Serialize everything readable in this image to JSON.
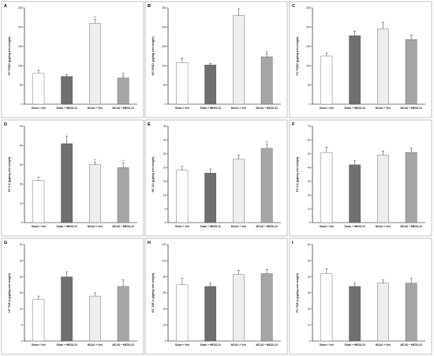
{
  "colors": {
    "Sham + Veh": "#ffffff",
    "Sham + MEDS-23": "#6f6f6f",
    "MCAO + Veh": "#eeeeee",
    "MCAO + MEDS-23": "#a9a9a9"
  },
  "chart_data": [
    {
      "type": "bar",
      "panel": "A",
      "ylabel": "HT PGE2 (pg/mg wet weight)",
      "categories": [
        "Sham + Veh",
        "Sham + MEDS-23",
        "MCAO + Veh",
        "MCAO + MEDS-23"
      ],
      "values": [
        80,
        72,
        210,
        68
      ],
      "errors": [
        8,
        5,
        10,
        6
      ],
      "annotations": [
        "",
        "",
        "**",
        "#"
      ],
      "ylim": [
        0,
        250
      ],
      "yticks": [
        0,
        50,
        100,
        150,
        200,
        250
      ]
    },
    {
      "type": "bar",
      "panel": "B",
      "ylabel": "HC PGE2 (pg/mg wet weight)",
      "categories": [
        "Sham + Veh",
        "Sham + MEDS-23",
        "MCAO + Veh",
        "MCAO + MEDS-23"
      ],
      "values": [
        108,
        102,
        230,
        123
      ],
      "errors": [
        12,
        4,
        18,
        7
      ],
      "annotations": [
        "",
        "",
        "",
        "#"
      ],
      "ylim": [
        0,
        250
      ],
      "yticks": [
        0,
        50,
        100,
        150,
        200,
        250
      ]
    },
    {
      "type": "bar",
      "panel": "C",
      "ylabel": "FC PGE2 (pg/mg wet weight)",
      "categories": [
        "Sham + Veh",
        "Sham + MEDS-23",
        "MCAO + Veh",
        "MCAO + MEDS-23"
      ],
      "values": [
        125,
        178,
        195,
        168
      ],
      "errors": [
        8,
        12,
        18,
        12
      ],
      "annotations": [
        "",
        "",
        "",
        ""
      ],
      "ylim": [
        0,
        250
      ],
      "yticks": [
        0,
        50,
        100,
        150,
        200,
        250
      ]
    },
    {
      "type": "bar",
      "panel": "D",
      "ylabel": "HT IL6 (pg/mg wet weight)",
      "categories": [
        "Sham + Veh",
        "Sham + MEDS-23",
        "MCAO + Veh",
        "MCAO + MEDS-23"
      ],
      "values": [
        22,
        41,
        30,
        28.5
      ],
      "errors": [
        1.5,
        4,
        1.5,
        2.5
      ],
      "annotations": [
        "",
        "",
        "**",
        "**"
      ],
      "ylim": [
        0,
        50
      ],
      "yticks": [
        0,
        10,
        20,
        30,
        40,
        50
      ]
    },
    {
      "type": "bar",
      "panel": "E",
      "ylabel": "HC IL6 (pg/mg wet weight)",
      "categories": [
        "Sham + Veh",
        "Sham + MEDS-23",
        "MCAO + Veh",
        "MCAO + MEDS-23"
      ],
      "values": [
        19,
        18,
        23,
        27
      ],
      "errors": [
        1.5,
        1.5,
        1.5,
        1.5
      ],
      "annotations": [
        "",
        "",
        "",
        "**"
      ],
      "ylim": [
        0,
        35
      ],
      "yticks": [
        0,
        5,
        10,
        15,
        20,
        25,
        30,
        35
      ]
    },
    {
      "type": "bar",
      "panel": "F",
      "ylabel": "FC IL6 (pg/mg wet weight)",
      "categories": [
        "Sham + Veh",
        "Sham + MEDS-23",
        "MCAO + Veh",
        "MCAO + MEDS-23"
      ],
      "values": [
        51,
        42,
        49,
        51
      ],
      "errors": [
        4,
        3,
        3,
        3
      ],
      "annotations": [
        "",
        "",
        "",
        ""
      ],
      "ylim": [
        0,
        70
      ],
      "yticks": [
        0,
        10,
        20,
        30,
        40,
        50,
        60,
        70
      ]
    },
    {
      "type": "bar",
      "panel": "G",
      "ylabel": "HT TNF-α (pg/mg wet weight)",
      "categories": [
        "Sham + Veh",
        "Sham + MEDS-23",
        "MCAO + Veh",
        "MCAO + MEDS-23"
      ],
      "values": [
        13,
        20,
        14,
        17
      ],
      "errors": [
        1,
        1.5,
        1,
        2
      ],
      "annotations": [
        "",
        "",
        "",
        ""
      ],
      "ylim": [
        0,
        30
      ],
      "yticks": [
        0,
        5,
        10,
        15,
        20,
        25,
        30
      ]
    },
    {
      "type": "bar",
      "panel": "H",
      "ylabel": "HC TNF-α (pg/mg wet weight)",
      "categories": [
        "Sham + Veh",
        "Sham + MEDS-23",
        "MCAO + Veh",
        "MCAO + MEDS-23"
      ],
      "values": [
        70,
        68,
        83,
        84
      ],
      "errors": [
        8,
        4,
        5,
        5
      ],
      "annotations": [
        "",
        "",
        "",
        ""
      ],
      "ylim": [
        0,
        120
      ],
      "yticks": [
        0,
        20,
        40,
        60,
        80,
        100,
        120
      ]
    },
    {
      "type": "bar",
      "panel": "I",
      "ylabel": "FC TNF-α (pg/mg wet weight)",
      "categories": [
        "Sham + Veh",
        "Sham + MEDS-23",
        "MCAO + Veh",
        "MCAO + MEDS-23"
      ],
      "values": [
        42,
        34,
        36,
        36
      ],
      "errors": [
        3,
        2,
        2,
        3
      ],
      "annotations": [
        "",
        "",
        "",
        ""
      ],
      "ylim": [
        0,
        60
      ],
      "yticks": [
        0,
        10,
        20,
        30,
        40,
        50,
        60
      ]
    }
  ]
}
